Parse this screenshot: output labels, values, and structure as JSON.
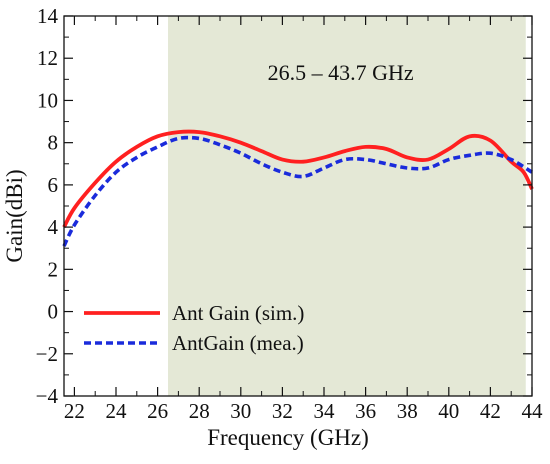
{
  "chart_data": {
    "type": "line",
    "xlabel": "Frequency (GHz)",
    "ylabel": "Gain(dBi)",
    "xlim": [
      21.5,
      44
    ],
    "ylim": [
      -4,
      14
    ],
    "x_ticks": [
      22,
      24,
      26,
      28,
      30,
      32,
      34,
      36,
      38,
      40,
      42,
      44
    ],
    "y_ticks": [
      -4,
      -2,
      0,
      2,
      4,
      6,
      8,
      10,
      12,
      14
    ],
    "x_tick_labels": [
      "22",
      "24",
      "26",
      "28",
      "30",
      "32",
      "34",
      "36",
      "38",
      "40",
      "42",
      "44"
    ],
    "y_tick_labels": [
      "−4",
      "−2",
      "0",
      "2",
      "4",
      "6",
      "8",
      "10",
      "12",
      "14"
    ],
    "band": {
      "label": "26.5 – 43.7 GHz",
      "x_start": 26.5,
      "x_end": 43.7,
      "color": "#e4e8d6"
    },
    "grid": false,
    "legend_position": "lower-left",
    "series": [
      {
        "name": "Ant Gain (sim.)",
        "color": "#ff2020",
        "style": "solid",
        "x": [
          21.5,
          22,
          23,
          24,
          25,
          26,
          27,
          28,
          29,
          30,
          31,
          32,
          33,
          34,
          35,
          36,
          37,
          38,
          39,
          40,
          41,
          42,
          43,
          43.6,
          44
        ],
        "y": [
          4.0,
          4.9,
          6.1,
          7.1,
          7.8,
          8.3,
          8.5,
          8.5,
          8.3,
          8.0,
          7.6,
          7.2,
          7.1,
          7.3,
          7.6,
          7.8,
          7.7,
          7.3,
          7.2,
          7.7,
          8.3,
          8.1,
          7.1,
          6.6,
          5.8
        ]
      },
      {
        "name": "AntGain (mea.)",
        "color": "#1a2bdb",
        "style": "dashed",
        "x": [
          21.5,
          22,
          23,
          24,
          25,
          26,
          27,
          28,
          29,
          30,
          31,
          32,
          33,
          34,
          35,
          36,
          37,
          38,
          39,
          40,
          41,
          42,
          43,
          44
        ],
        "y": [
          3.1,
          4.1,
          5.5,
          6.6,
          7.3,
          7.8,
          8.2,
          8.2,
          7.9,
          7.5,
          7.0,
          6.6,
          6.4,
          6.8,
          7.2,
          7.2,
          7.0,
          6.8,
          6.8,
          7.2,
          7.4,
          7.5,
          7.2,
          6.6
        ]
      }
    ]
  }
}
